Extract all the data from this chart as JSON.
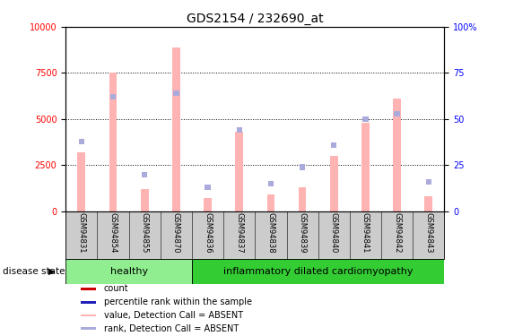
{
  "title": "GDS2154 / 232690_at",
  "samples": [
    "GSM94831",
    "GSM94854",
    "GSM94855",
    "GSM94870",
    "GSM94836",
    "GSM94837",
    "GSM94838",
    "GSM94839",
    "GSM94840",
    "GSM94841",
    "GSM94842",
    "GSM94843"
  ],
  "bar_values": [
    3200,
    7500,
    1200,
    8900,
    700,
    4300,
    900,
    1300,
    3000,
    4800,
    6100,
    800
  ],
  "rank_values": [
    38,
    62,
    20,
    64,
    13,
    44,
    15,
    24,
    36,
    50,
    53,
    16
  ],
  "bar_color_absent": "#FFB3B3",
  "rank_color_absent": "#AAAADD",
  "bar_color_present": "#CC0000",
  "rank_color_present": "#2222BB",
  "healthy_indices": [
    0,
    1,
    2,
    3
  ],
  "disease_indices": [
    4,
    5,
    6,
    7,
    8,
    9,
    10,
    11
  ],
  "healthy_label": "healthy",
  "disease_label": "inflammatory dilated cardiomyopathy",
  "disease_state_label": "disease state",
  "ylim_left": [
    0,
    10000
  ],
  "ylim_right": [
    0,
    100
  ],
  "yticks_left": [
    0,
    2500,
    5000,
    7500,
    10000
  ],
  "yticks_right": [
    0,
    25,
    50,
    75,
    100
  ],
  "legend_labels": [
    "count",
    "percentile rank within the sample",
    "value, Detection Call = ABSENT",
    "rank, Detection Call = ABSENT"
  ],
  "legend_colors": [
    "#CC0000",
    "#2222BB",
    "#FFB3B3",
    "#AAAADD"
  ],
  "healthy_bg": "#90EE90",
  "disease_bg": "#33CC33",
  "tick_label_bg": "#CCCCCC",
  "bar_width": 0.25,
  "rank_square_size": 0.18
}
